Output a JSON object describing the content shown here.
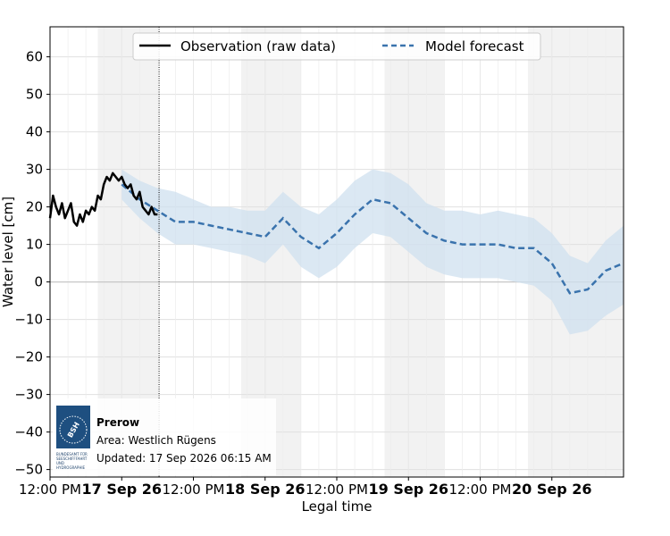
{
  "chart_data": {
    "type": "line",
    "xlabel": "Legal time",
    "ylabel": "Water level [cm]",
    "ylim": [
      -52,
      68
    ],
    "xlim": [
      "2026-09-16 12:00",
      "2026-09-20 12:00"
    ],
    "yticks": [
      60,
      50,
      40,
      30,
      20,
      10,
      0,
      -10,
      -20,
      -30,
      -40,
      -50
    ],
    "ytick_labels": [
      "60",
      "50",
      "40",
      "30",
      "20",
      "10",
      "0",
      "−10",
      "−20",
      "−30",
      "−40",
      "−50"
    ],
    "xticks": [
      {
        "time": "2026-09-16 12:00",
        "label": "12:00 PM",
        "bold": false
      },
      {
        "time": "2026-09-17 00:00",
        "label": "17 Sep 26",
        "bold": true
      },
      {
        "time": "2026-09-17 12:00",
        "label": "12:00 PM",
        "bold": false
      },
      {
        "time": "2026-09-18 00:00",
        "label": "18 Sep 26",
        "bold": true
      },
      {
        "time": "2026-09-18 12:00",
        "label": "12:00 PM",
        "bold": false
      },
      {
        "time": "2026-09-19 00:00",
        "label": "19 Sep 26",
        "bold": true
      },
      {
        "time": "2026-09-19 12:00",
        "label": "12:00 PM",
        "bold": false
      },
      {
        "time": "2026-09-20 00:00",
        "label": "20 Sep 26",
        "bold": true
      }
    ],
    "night_shading": [
      [
        "2026-09-16 20:00",
        "2026-09-17 06:00"
      ],
      [
        "2026-09-17 20:00",
        "2026-09-18 06:00"
      ],
      [
        "2026-09-18 20:00",
        "2026-09-19 06:00"
      ],
      [
        "2026-09-19 20:00",
        "2026-09-20 12:00"
      ]
    ],
    "now_line": "2026-09-17 06:15",
    "grid": true,
    "legend_position": "top-center",
    "series": [
      {
        "name": "Observation (raw data)",
        "style": "solid",
        "color": "#000000",
        "x": [
          "2026-09-16 12:00",
          "2026-09-16 12:30",
          "2026-09-16 13:00",
          "2026-09-16 13:30",
          "2026-09-16 14:00",
          "2026-09-16 14:30",
          "2026-09-16 15:00",
          "2026-09-16 15:30",
          "2026-09-16 16:00",
          "2026-09-16 16:30",
          "2026-09-16 17:00",
          "2026-09-16 17:30",
          "2026-09-16 18:00",
          "2026-09-16 18:30",
          "2026-09-16 19:00",
          "2026-09-16 19:30",
          "2026-09-16 20:00",
          "2026-09-16 20:30",
          "2026-09-16 21:00",
          "2026-09-16 21:30",
          "2026-09-16 22:00",
          "2026-09-16 22:30",
          "2026-09-16 23:00",
          "2026-09-16 23:30",
          "2026-09-17 00:00",
          "2026-09-17 00:30",
          "2026-09-17 01:00",
          "2026-09-17 01:30",
          "2026-09-17 02:00",
          "2026-09-17 02:30",
          "2026-09-17 03:00",
          "2026-09-17 03:30",
          "2026-09-17 04:00",
          "2026-09-17 04:30",
          "2026-09-17 05:00",
          "2026-09-17 05:30",
          "2026-09-17 06:00"
        ],
        "values": [
          17,
          23,
          20,
          18,
          21,
          17,
          19,
          21,
          16,
          15,
          18,
          16,
          19,
          18,
          20,
          19,
          23,
          22,
          26,
          28,
          27,
          29,
          28,
          27,
          28,
          26,
          25,
          26,
          23,
          22,
          24,
          20,
          19,
          18,
          20,
          18,
          18
        ]
      },
      {
        "name": "Model forecast",
        "style": "dashed",
        "color": "#3a73ad",
        "x": [
          "2026-09-17 00:00",
          "2026-09-17 03:00",
          "2026-09-17 06:00",
          "2026-09-17 09:00",
          "2026-09-17 12:00",
          "2026-09-17 15:00",
          "2026-09-17 18:00",
          "2026-09-17 21:00",
          "2026-09-18 00:00",
          "2026-09-18 03:00",
          "2026-09-18 06:00",
          "2026-09-18 09:00",
          "2026-09-18 12:00",
          "2026-09-18 15:00",
          "2026-09-18 18:00",
          "2026-09-18 21:00",
          "2026-09-19 00:00",
          "2026-09-19 03:00",
          "2026-09-19 06:00",
          "2026-09-19 09:00",
          "2026-09-19 12:00",
          "2026-09-19 15:00",
          "2026-09-19 18:00",
          "2026-09-19 21:00",
          "2026-09-20 00:00",
          "2026-09-20 03:00",
          "2026-09-20 06:00",
          "2026-09-20 09:00",
          "2026-09-20 12:00"
        ],
        "values": [
          26,
          22,
          19,
          16,
          16,
          15,
          14,
          13,
          12,
          17,
          12,
          9,
          13,
          18,
          22,
          21,
          17,
          13,
          11,
          10,
          10,
          10,
          9,
          9,
          5,
          -3,
          -2,
          3,
          5
        ],
        "band_upper": [
          30,
          27,
          25,
          24,
          22,
          20,
          20,
          19,
          19,
          24,
          20,
          18,
          22,
          27,
          30,
          29,
          26,
          21,
          19,
          19,
          18,
          19,
          18,
          17,
          13,
          7,
          5,
          11,
          15
        ],
        "band_lower": [
          22,
          17,
          13,
          10,
          10,
          9,
          8,
          7,
          5,
          10,
          4,
          1,
          4,
          9,
          13,
          12,
          8,
          4,
          2,
          1,
          1,
          1,
          0,
          -1,
          -5,
          -14,
          -13,
          -9,
          -6
        ]
      }
    ]
  },
  "info_box": {
    "logo_text": "BSH",
    "logo_caption": "BUNDESAMT FÜR SEESCHIFFFAHRT UND HYDROGRAPHIE",
    "station": "Prerow",
    "area": "Area: Westlich Rügens",
    "updated": "Updated: 17 Sep 2026 06:15 AM"
  },
  "colors": {
    "observation": "#000000",
    "forecast": "#3a73ad",
    "band": "#cfe0ef",
    "night_shade": "#f2f2f2",
    "grid": "#e0e0e0",
    "logo_bg": "#1e4f80"
  }
}
